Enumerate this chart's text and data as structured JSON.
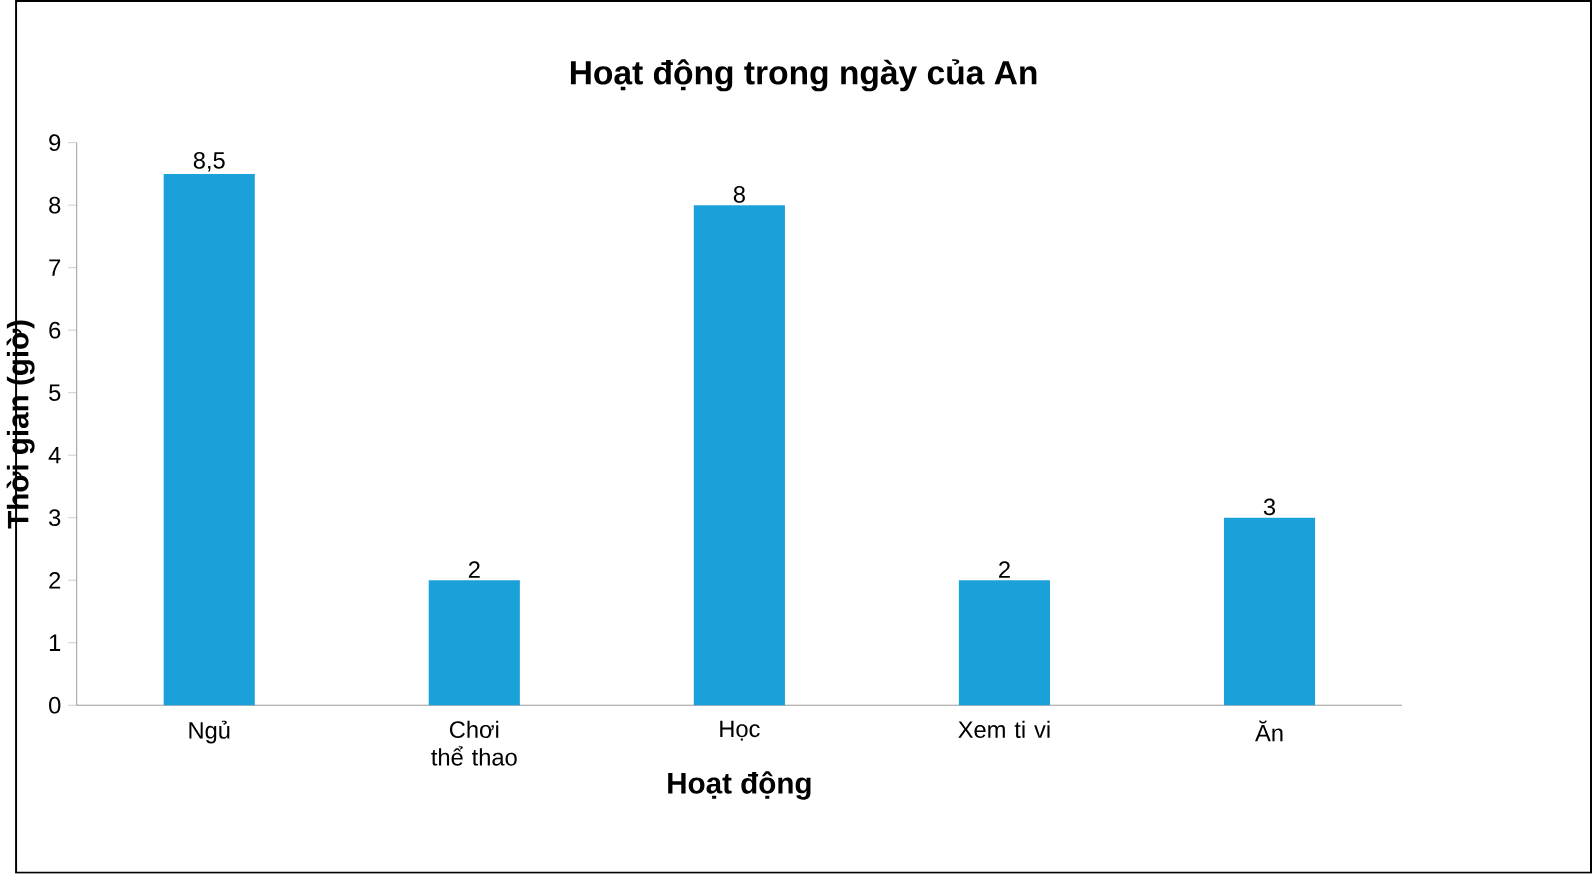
{
  "chart_data": {
    "type": "bar",
    "title": "Hoạt động trong ngày của An",
    "xlabel": "Hoạt động",
    "ylabel": "Thời gian (giờ)",
    "categories": [
      "Ngủ",
      "Chơi thể thao",
      "Học",
      "Xem ti vi",
      "Ăn"
    ],
    "values": [
      8.5,
      2,
      8,
      2,
      3
    ],
    "value_labels": [
      "8,5",
      "2",
      "8",
      "2",
      "3"
    ],
    "color": "#1ba1d9",
    "ylim": [
      0,
      9
    ],
    "yticks": [
      0,
      1,
      2,
      3,
      4,
      5,
      6,
      7,
      8,
      9
    ]
  }
}
